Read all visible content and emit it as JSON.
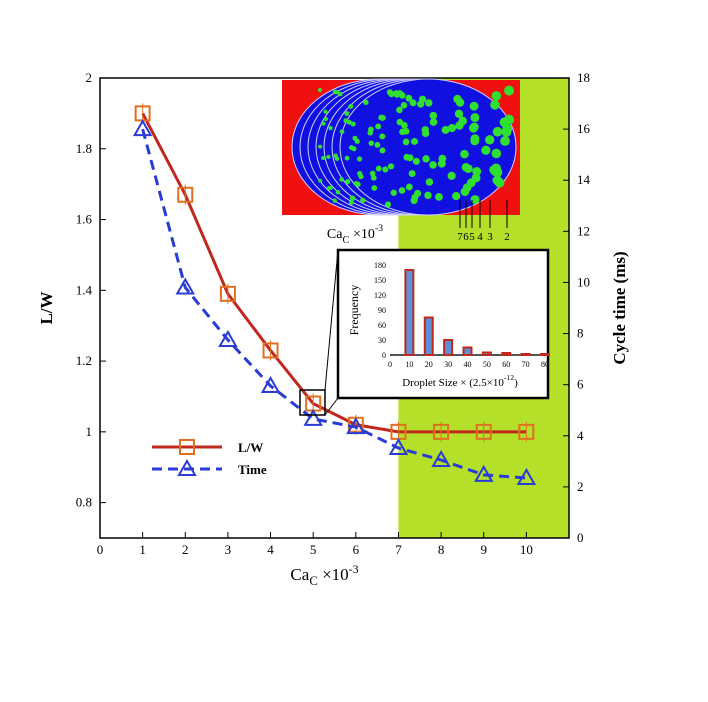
{
  "chart_data": [
    {
      "type": "line",
      "xlabel": "Ca_C ×10^-3",
      "ylabel": "L/W",
      "y2label": "Cycle time (ms)",
      "xlim": [
        0,
        11
      ],
      "ylim": [
        0.7,
        2
      ],
      "y2lim": [
        0,
        18
      ],
      "xticks": [
        0,
        1,
        2,
        3,
        4,
        5,
        6,
        7,
        8,
        9,
        10
      ],
      "yticks": [
        0.8,
        1,
        1.2,
        1.4,
        1.6,
        1.8,
        2
      ],
      "y2ticks": [
        0,
        2,
        4,
        6,
        8,
        10,
        12,
        14,
        16,
        18
      ],
      "shaded_region": {
        "x_from": 7,
        "x_to": 11,
        "color": "#b5e02a"
      },
      "legend_placement": "lower-left",
      "series": [
        {
          "name": "L/W",
          "axis": "left",
          "color": "#c0281e",
          "marker": "square",
          "style": "solid",
          "x": [
            1,
            2,
            3,
            4,
            5,
            6,
            7,
            8,
            9,
            10
          ],
          "y": [
            1.9,
            1.67,
            1.39,
            1.23,
            1.08,
            1.02,
            1.0,
            1.0,
            1.0,
            1.0
          ]
        },
        {
          "name": "Time",
          "axis": "right",
          "color": "#2a3bd6",
          "marker": "triangle",
          "style": "dashed",
          "x": [
            1,
            2,
            3,
            4,
            5,
            6,
            7,
            8,
            9,
            10
          ],
          "y": [
            16.0,
            9.8,
            7.75,
            5.95,
            4.66,
            4.34,
            3.52,
            3.05,
            2.47,
            2.35
          ]
        }
      ]
    },
    {
      "type": "bar",
      "xlabel": "Droplet Size × (2.5×10^-12)",
      "ylabel": "Frequency",
      "xticks": [
        0,
        10,
        20,
        30,
        40,
        50,
        60,
        70,
        80
      ],
      "yticks": [
        0,
        30,
        60,
        90,
        120,
        150,
        180
      ],
      "ylim": [
        0,
        180
      ],
      "categories": [
        10,
        20,
        30,
        40,
        50,
        60,
        70,
        80
      ],
      "values": [
        170,
        75,
        30,
        15,
        5,
        4,
        2,
        2
      ],
      "bar_color": "#5b8fd6",
      "edge_color": "#c0281e"
    }
  ],
  "image_inset": {
    "label": "Ca_C ×10^-3",
    "contour_labels": [
      "7",
      "6",
      "5",
      "4",
      "3",
      "2"
    ]
  }
}
